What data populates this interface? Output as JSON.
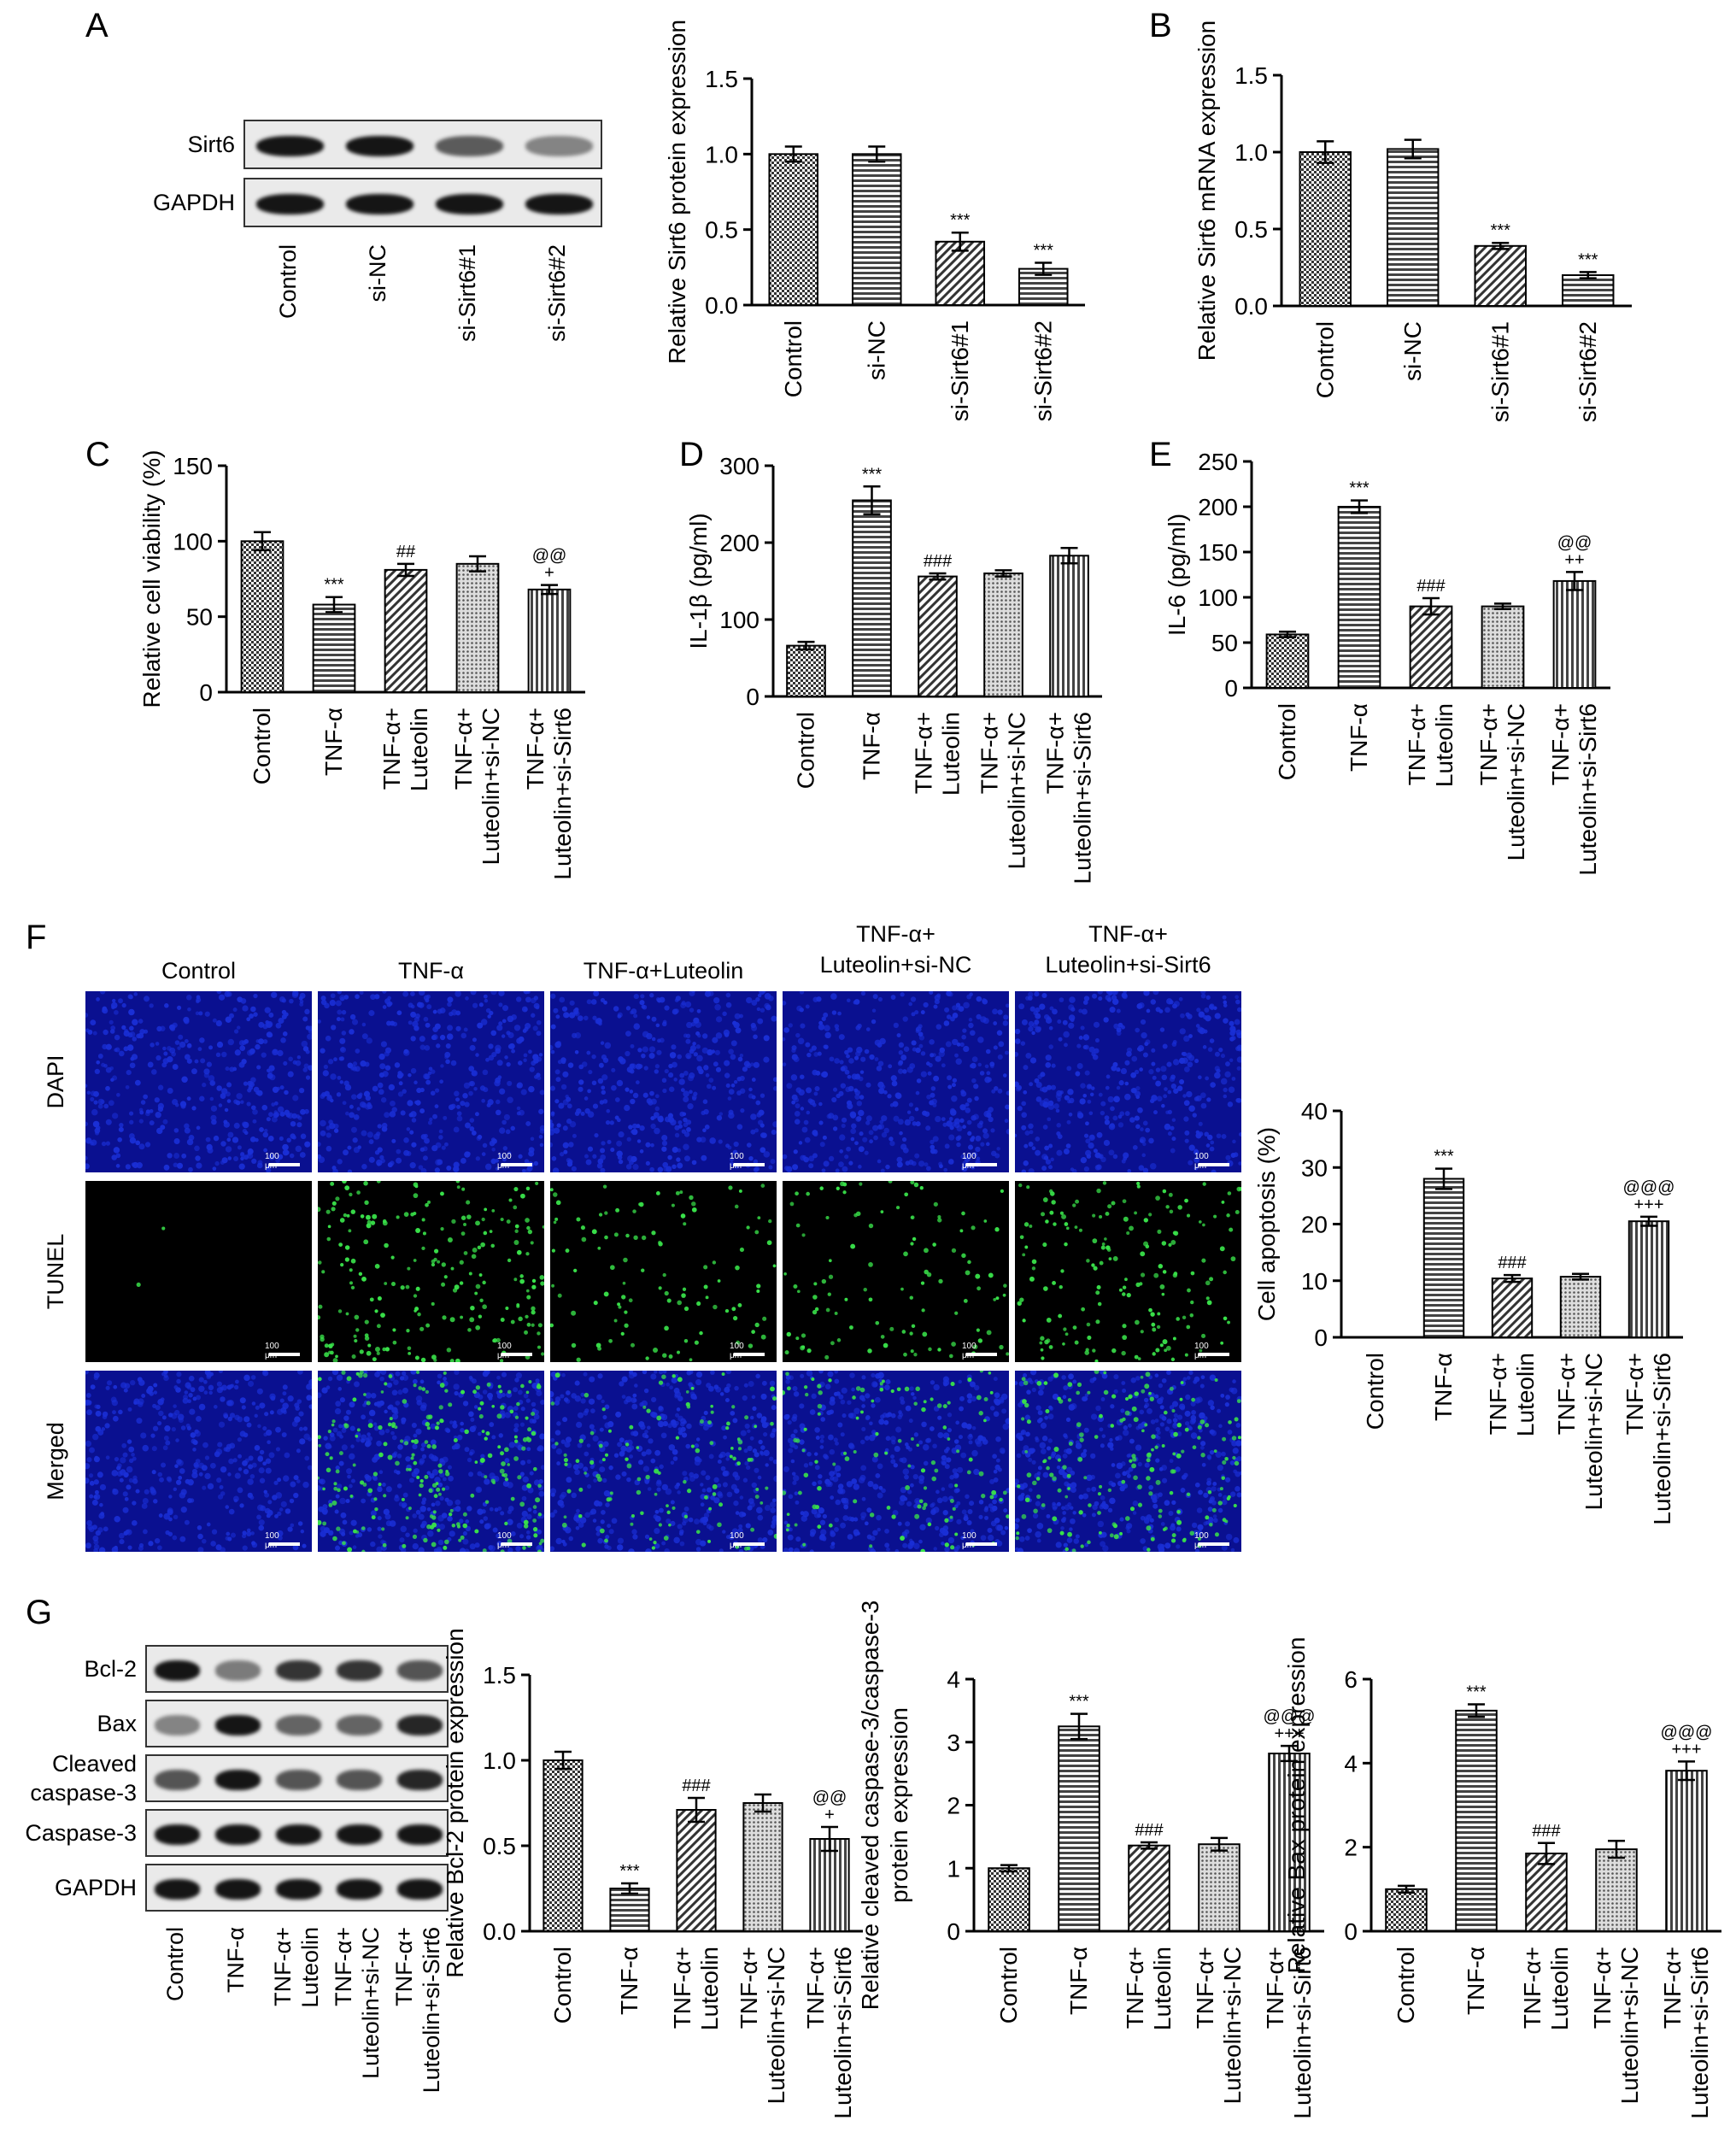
{
  "panels": {
    "A": "A",
    "B": "B",
    "C": "C",
    "D": "D",
    "E": "E",
    "F": "F",
    "G": "G"
  },
  "blot_A": {
    "rows": [
      "Sirt6",
      "GAPDH"
    ],
    "lanes": [
      "Control",
      "si-NC",
      "si-Sirt6#1",
      "si-Sirt6#2"
    ],
    "intensity": [
      [
        1.0,
        1.0,
        0.55,
        0.3
      ],
      [
        1.0,
        1.0,
        1.0,
        1.0
      ]
    ]
  },
  "blot_G": {
    "rows": [
      "Bcl-2",
      "Bax",
      "Cleaved\ncaspase-3",
      "Caspase-3",
      "GAPDH"
    ],
    "lanes": [
      "Control",
      "TNF-α",
      "TNF-α+\nLuteolin",
      "TNF-α+\nLuteolin+si-NC",
      "TNF-α+\nLuteolin+si-Sirt6"
    ],
    "intensity": [
      [
        1.0,
        0.35,
        0.8,
        0.8,
        0.6
      ],
      [
        0.3,
        1.0,
        0.5,
        0.5,
        0.9
      ],
      [
        0.6,
        1.0,
        0.6,
        0.6,
        0.9
      ],
      [
        1.0,
        1.0,
        1.0,
        1.0,
        1.0
      ],
      [
        1.0,
        1.0,
        1.0,
        1.0,
        1.0
      ]
    ]
  },
  "micrographs": {
    "columns": [
      "Control",
      "TNF-α",
      "TNF-α+Luteolin",
      "TNF-α+\nLuteolin+si-NC",
      "TNF-α+\nLuteolin+si-Sirt6"
    ],
    "rows": [
      "DAPI",
      "TUNEL",
      "Merged"
    ],
    "scale_label": "100 μm",
    "tunel_density": [
      0.0,
      1.0,
      0.5,
      0.5,
      0.8
    ],
    "colors": {
      "dapi": "#1a2fd6",
      "tunel": "#39e24a",
      "background": "#000000"
    }
  },
  "chart_data": [
    {
      "panel": "A",
      "type": "bar",
      "ylabel": "Relative Sirt6 protein expression",
      "categories": [
        "Control",
        "si-NC",
        "si-Sirt6#1",
        "si-Sirt6#2"
      ],
      "values": [
        1.0,
        1.0,
        0.42,
        0.24
      ],
      "errors": [
        0.05,
        0.05,
        0.06,
        0.04
      ],
      "annotations": [
        "",
        "",
        "***",
        "***"
      ],
      "ylim": [
        0,
        1.5
      ],
      "yticks": [
        "0.0",
        "0.5",
        "1.0",
        "1.5"
      ],
      "patterns": [
        "check",
        "hlines",
        "diag",
        "hlines"
      ]
    },
    {
      "panel": "B",
      "type": "bar",
      "ylabel": "Relative Sirt6 mRNA expression",
      "categories": [
        "Control",
        "si-NC",
        "si-Sirt6#1",
        "si-Sirt6#2"
      ],
      "values": [
        1.0,
        1.02,
        0.39,
        0.2
      ],
      "errors": [
        0.07,
        0.06,
        0.02,
        0.02
      ],
      "annotations": [
        "",
        "",
        "***",
        "***"
      ],
      "ylim": [
        0,
        1.5
      ],
      "yticks": [
        "0.0",
        "0.5",
        "1.0",
        "1.5"
      ],
      "patterns": [
        "check",
        "hlines",
        "diag",
        "hlines"
      ]
    },
    {
      "panel": "C",
      "type": "bar",
      "ylabel": "Relative cell viability (%)",
      "categories": [
        "Control",
        "TNF-α",
        "TNF-α+\nLuteolin",
        "TNF-α+\nLuteolin+si-NC",
        "TNF-α+\nLuteolin+si-Sirt6"
      ],
      "values": [
        100,
        58,
        81,
        85,
        68
      ],
      "errors": [
        6,
        5,
        4,
        5,
        3
      ],
      "annotations": [
        "",
        "***",
        "##",
        "",
        "@@\n+"
      ],
      "ylim": [
        0,
        150
      ],
      "yticks": [
        "0",
        "50",
        "100",
        "150"
      ],
      "patterns": [
        "check",
        "hlines",
        "diag",
        "dots",
        "vlines"
      ]
    },
    {
      "panel": "D",
      "type": "bar",
      "ylabel": "IL-1β (pg/ml)",
      "categories": [
        "Control",
        "TNF-α",
        "TNF-α+\nLuteolin",
        "TNF-α+\nLuteolin+si-NC",
        "TNF-α+\nLuteolin+si-Sirt6"
      ],
      "values": [
        66,
        255,
        156,
        160,
        183
      ],
      "errors": [
        5,
        18,
        4,
        4,
        10
      ],
      "annotations": [
        "",
        "***",
        "###",
        "",
        ""
      ],
      "ylim": [
        0,
        300
      ],
      "yticks": [
        "0",
        "100",
        "200",
        "300"
      ],
      "patterns": [
        "check",
        "hlines",
        "diag",
        "dots",
        "vlines"
      ]
    },
    {
      "panel": "E",
      "type": "bar",
      "ylabel": "IL-6 (pg/ml)",
      "categories": [
        "Control",
        "TNF-α",
        "TNF-α+\nLuteolin",
        "TNF-α+\nLuteolin+si-NC",
        "TNF-α+\nLuteolin+si-Sirt6"
      ],
      "values": [
        59,
        200,
        90,
        90,
        118
      ],
      "errors": [
        3,
        7,
        9,
        3,
        10
      ],
      "annotations": [
        "",
        "***",
        "###",
        "",
        "@@\n++"
      ],
      "ylim": [
        0,
        250
      ],
      "yticks": [
        "0",
        "50",
        "100",
        "150",
        "200",
        "250"
      ],
      "patterns": [
        "check",
        "hlines",
        "diag",
        "dots",
        "vlines"
      ]
    },
    {
      "panel": "F",
      "type": "bar",
      "ylabel": "Cell apoptosis (%)",
      "categories": [
        "Control",
        "TNF-α",
        "TNF-α+\nLuteolin",
        "TNF-α+\nLuteolin+si-NC",
        "TNF-α+\nLuteolin+si-Sirt6"
      ],
      "values": [
        0,
        28,
        10.4,
        10.7,
        20.5
      ],
      "errors": [
        0,
        1.8,
        0.6,
        0.5,
        0.8
      ],
      "annotations": [
        "",
        "***",
        "###",
        "",
        "@@@\n+++"
      ],
      "ylim": [
        0,
        40
      ],
      "yticks": [
        "0",
        "10",
        "20",
        "30",
        "40"
      ],
      "patterns": [
        "check",
        "hlines",
        "diag",
        "dots",
        "vlines"
      ]
    },
    {
      "panel": "G1",
      "type": "bar",
      "ylabel": "Relative Bcl-2 protein expression",
      "categories": [
        "Control",
        "TNF-α",
        "TNF-α+\nLuteolin",
        "TNF-α+\nLuteolin+si-NC",
        "TNF-α+\nLuteolin+si-Sirt6"
      ],
      "values": [
        1.0,
        0.25,
        0.71,
        0.75,
        0.54
      ],
      "errors": [
        0.05,
        0.03,
        0.07,
        0.05,
        0.07
      ],
      "annotations": [
        "",
        "***",
        "###",
        "",
        "@@\n+"
      ],
      "ylim": [
        0,
        1.5
      ],
      "yticks": [
        "0.0",
        "0.5",
        "1.0",
        "1.5"
      ],
      "patterns": [
        "check",
        "hlines",
        "diag",
        "dots",
        "vlines"
      ]
    },
    {
      "panel": "G2",
      "type": "bar",
      "ylabel": "Relative cleaved caspase-3/caspase-3\nprotein expression",
      "categories": [
        "Control",
        "TNF-α",
        "TNF-α+\nLuteolin",
        "TNF-α+\nLuteolin+si-NC",
        "TNF-α+\nLuteolin+si-Sirt6"
      ],
      "values": [
        1.0,
        3.25,
        1.36,
        1.38,
        2.82
      ],
      "errors": [
        0.05,
        0.2,
        0.05,
        0.1,
        0.12
      ],
      "annotations": [
        "",
        "***",
        "###",
        "",
        "@@@\n+++"
      ],
      "ylim": [
        0,
        4
      ],
      "yticks": [
        "0",
        "1",
        "2",
        "3",
        "4"
      ],
      "patterns": [
        "check",
        "hlines",
        "diag",
        "dots",
        "vlines"
      ]
    },
    {
      "panel": "G3",
      "type": "bar",
      "ylabel": "Relative Bax protein expression",
      "categories": [
        "Control",
        "TNF-α",
        "TNF-α+\nLuteolin",
        "TNF-α+\nLuteolin+si-NC",
        "TNF-α+\nLuteolin+si-Sirt6"
      ],
      "values": [
        1.0,
        5.25,
        1.85,
        1.95,
        3.82
      ],
      "errors": [
        0.08,
        0.15,
        0.25,
        0.2,
        0.22
      ],
      "annotations": [
        "",
        "***",
        "###",
        "",
        "@@@\n+++"
      ],
      "ylim": [
        0,
        6
      ],
      "yticks": [
        "0",
        "2",
        "4",
        "6"
      ],
      "patterns": [
        "check",
        "hlines",
        "diag",
        "dots",
        "vlines"
      ]
    }
  ]
}
